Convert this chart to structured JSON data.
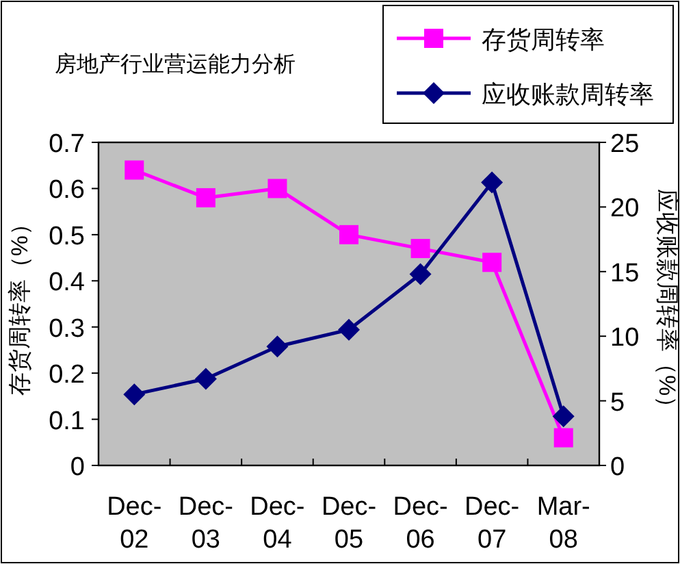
{
  "chart_data": {
    "type": "line",
    "title": "房地产行业营运能力分析",
    "ylabel": "存货周转率（%）",
    "y2label": "应收账款周转率（%）",
    "categories": [
      "Dec-02",
      "Dec-03",
      "Dec-04",
      "Dec-05",
      "Dec-06",
      "Dec-07",
      "Mar-08"
    ],
    "series": [
      {
        "name": "存货周转率",
        "color": "#ff00ff",
        "marker": "square",
        "values": [
          0.64,
          0.58,
          0.6,
          0.5,
          0.47,
          0.44,
          0.06
        ]
      },
      {
        "name": "应收账款周转率",
        "color": "#000080",
        "marker": "diamond",
        "axis": "y2",
        "values": [
          5.5,
          6.7,
          9.2,
          10.5,
          14.8,
          21.9,
          3.8
        ]
      }
    ],
    "ylim": [
      0,
      0.7
    ],
    "yticks": [
      0,
      0.1,
      0.2,
      0.3,
      0.4,
      0.5,
      0.6,
      0.7
    ],
    "y2lim": [
      0,
      25
    ],
    "y2ticks": [
      0,
      5,
      10,
      15,
      20,
      25
    ],
    "legend": "top right"
  }
}
